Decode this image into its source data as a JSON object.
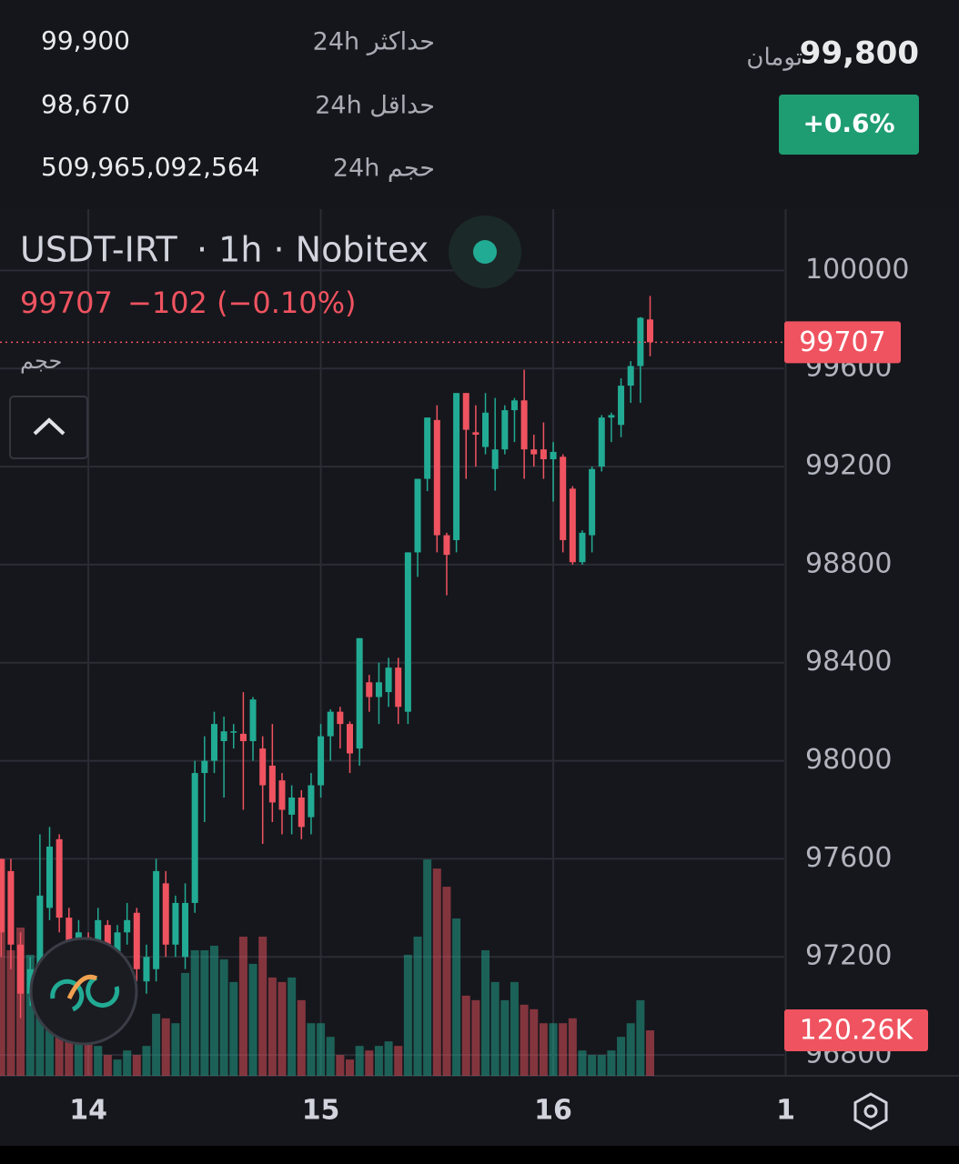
{
  "header": {
    "price": "99,800",
    "currency": "تومان",
    "change": "+0.6%",
    "stats": [
      {
        "label": "حداکثر 24h",
        "value": "99,900"
      },
      {
        "label": "حداقل 24h",
        "value": "98,670"
      },
      {
        "label": "حجم 24h",
        "value": "509,965,092,564"
      }
    ]
  },
  "chart_data": {
    "type": "candlestick",
    "title": "USDT-IRT",
    "subtitle": "· 1h · Nobitex",
    "change_label": "−102 (−0.10%)",
    "up_color": "#22ab94",
    "down_color": "#f05360",
    "x": [
      13.625,
      13.6667,
      13.7083,
      13.75,
      13.7917,
      13.8333,
      13.875,
      13.9167,
      13.9583,
      14,
      14.0417,
      14.0833,
      14.125,
      14.1667,
      14.2083,
      14.25,
      14.2917,
      14.3333,
      14.375,
      14.4167,
      14.4583,
      14.5,
      14.5417,
      14.5833,
      14.625,
      14.6667,
      14.7083,
      14.75,
      14.7917,
      14.8333,
      14.875,
      14.9167,
      14.9583,
      15,
      15.0417,
      15.0833,
      15.125,
      15.1667,
      15.2083,
      15.25,
      15.2917,
      15.3333,
      15.375,
      15.4167,
      15.4583,
      15.5,
      15.5417,
      15.5833,
      15.625,
      15.6667,
      15.7083,
      15.75,
      15.7917,
      15.8333,
      15.875,
      15.9167,
      15.9583,
      16,
      16.0417,
      16.0833,
      16.125,
      16.1667,
      16.2083,
      16.25,
      16.2917,
      16.3333,
      16.375,
      16.4167
    ],
    "open": [
      97600,
      97550,
      97250,
      97050,
      97150,
      97400,
      97680,
      97360,
      97250,
      97280,
      97200,
      97330,
      97150,
      97300,
      97380,
      97100,
      97150,
      97500,
      97250,
      97200,
      97420,
      97950,
      98000,
      98080,
      98120,
      98110,
      98080,
      98050,
      97980,
      97920,
      97780,
      97850,
      97770,
      97900,
      98100,
      98200,
      98150,
      98050,
      98320,
      98260,
      98280,
      98380,
      98200,
      98850,
      99150,
      99390,
      98920,
      98900,
      99500,
      99340,
      99280,
      99190,
      99270,
      99430,
      99470,
      99270,
      99270,
      99230,
      99240,
      99110,
      98810,
      98920,
      99200,
      99400,
      99370,
      99530,
      99610,
      99800
    ],
    "high": [
      97600,
      97600,
      97300,
      97200,
      97700,
      97730,
      97700,
      97400,
      97350,
      97300,
      97400,
      97350,
      97330,
      97420,
      97400,
      97250,
      97600,
      97550,
      97450,
      97500,
      98000,
      98100,
      98200,
      98180,
      98150,
      98280,
      98260,
      98100,
      98150,
      97950,
      97900,
      97880,
      97950,
      98150,
      98210,
      98220,
      98160,
      98500,
      98350,
      98400,
      98420,
      98420,
      98850,
      99150,
      99400,
      99450,
      98930,
      99500,
      99500,
      99450,
      99500,
      99480,
      99450,
      99480,
      99595,
      99330,
      99380,
      99300,
      99250,
      99120,
      98940,
      99200,
      99410,
      99420,
      99560,
      99630,
      99810,
      99896
    ],
    "low": [
      97200,
      97150,
      96950,
      97000,
      97100,
      97350,
      97300,
      97050,
      97200,
      97150,
      97150,
      97150,
      97100,
      97250,
      97100,
      97050,
      97100,
      97200,
      97200,
      97150,
      97380,
      97750,
      97950,
      97850,
      98050,
      97800,
      98000,
      97661,
      97750,
      97700,
      97700,
      97680,
      97700,
      97850,
      98000,
      98050,
      97950,
      97980,
      98200,
      98150,
      98220,
      98150,
      98150,
      98750,
      99100,
      98850,
      98675,
      98850,
      99150,
      99200,
      99250,
      99102,
      99250,
      99300,
      99150,
      99200,
      99150,
      99057,
      98850,
      98800,
      98800,
      98850,
      99180,
      99300,
      99320,
      99460,
      99460,
      99650
    ],
    "close": [
      97300,
      97250,
      97050,
      97150,
      97450,
      97650,
      97360,
      97150,
      97300,
      97200,
      97350,
      97200,
      97300,
      97350,
      97150,
      97200,
      97550,
      97250,
      97420,
      97420,
      97950,
      98000,
      98150,
      98120,
      98120,
      98080,
      98250,
      97900,
      97830,
      97800,
      97850,
      97730,
      97900,
      98100,
      98200,
      98150,
      98030,
      98500,
      98260,
      98320,
      98380,
      98220,
      98850,
      99150,
      99400,
      98920,
      98840,
      99500,
      99350,
      99330,
      99420,
      99270,
      99430,
      99470,
      99270,
      99250,
      99230,
      99260,
      98900,
      98810,
      98930,
      99190,
      99400,
      99410,
      99530,
      99610,
      99807,
      99707
    ],
    "volume": {
      "name": "حجم",
      "last_label": "120.26K",
      "values": [
        572000,
        332000,
        392000,
        320000,
        296000,
        272000,
        176000,
        164000,
        152000,
        103000,
        79000,
        55000,
        43000,
        67000,
        55000,
        79000,
        164000,
        152000,
        139000,
        272000,
        332000,
        332000,
        344000,
        308000,
        248000,
        368000,
        296000,
        368000,
        260000,
        248000,
        260000,
        200000,
        139000,
        139000,
        103000,
        55000,
        43000,
        79000,
        67000,
        79000,
        91000,
        79000,
        320000,
        368000,
        572000,
        548000,
        500000,
        416000,
        212000,
        200000,
        332000,
        248000,
        200000,
        248000,
        188000,
        176000,
        139000,
        139000,
        139000,
        152000,
        67000,
        55000,
        55000,
        67000,
        103000,
        139000,
        200000,
        120260
      ]
    },
    "xlim": [
      13.62,
      16.994
    ],
    "xticks": [
      14,
      15,
      16,
      {
        "value": 17,
        "label": "1"
      }
    ],
    "ylim": [
      96715,
      100250
    ],
    "yticks": [
      96800,
      97200,
      97600,
      98000,
      98400,
      98800,
      99200,
      99600,
      100000
    ],
    "grid": true
  }
}
